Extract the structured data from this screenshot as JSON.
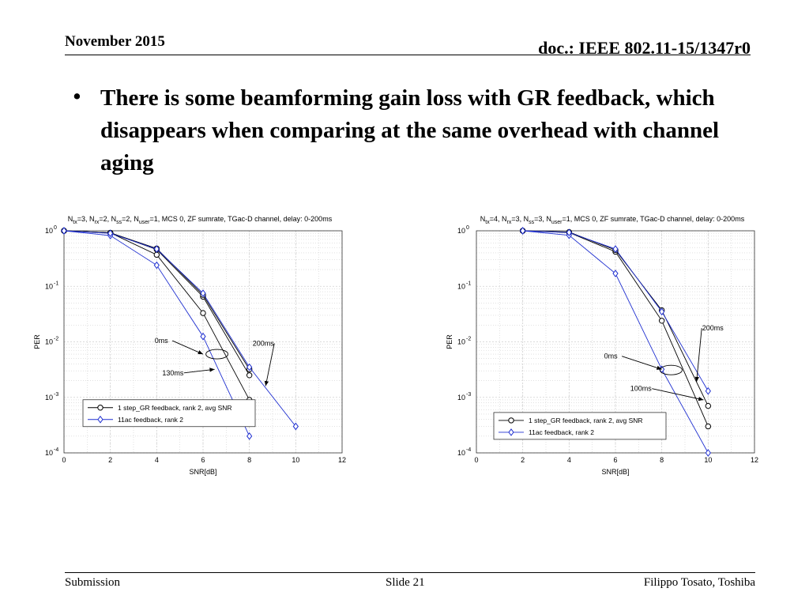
{
  "slide": {
    "date": "November 2015",
    "doc": "doc.: IEEE 802.11-15/1347r0",
    "bullet": "There is some beamforming gain loss with GR feedback, which disappears when comparing at the same overhead with channel aging",
    "footer_left": "Submission",
    "footer_mid": "Slide 21",
    "footer_right": "Filippo Tosato, Toshiba"
  },
  "colors": {
    "black_series": "#000000",
    "blue_series": "#1f2fd0",
    "grid": "#d0d0d0"
  },
  "chart_data": [
    {
      "type": "line",
      "title": "N_tx=3, N_rx=2, N_ss=2, N_user=1, MCS 0, ZF sumrate, TGac-D channel, delay: 0-200ms",
      "title_parts": [
        {
          "t": "N",
          "sub": false
        },
        {
          "t": "tx",
          "sub": true
        },
        {
          "t": "=3, N",
          "sub": false
        },
        {
          "t": "rx",
          "sub": true
        },
        {
          "t": "=2, N",
          "sub": false
        },
        {
          "t": "ss",
          "sub": true
        },
        {
          "t": "=2, N",
          "sub": false
        },
        {
          "t": "user",
          "sub": true
        },
        {
          "t": "=1, MCS 0, ZF sumrate, TGac-D channel, delay: 0-200ms",
          "sub": false
        }
      ],
      "xlabel": "SNR[dB]",
      "ylabel": "PER",
      "xlim": [
        0,
        12
      ],
      "ylim": [
        0.0001,
        1
      ],
      "yscale": "log",
      "xticks": [
        "0",
        "2",
        "4",
        "6",
        "8",
        "10",
        "12"
      ],
      "yticks": [
        {
          "base": "10",
          "exp": "0"
        },
        {
          "base": "10",
          "exp": "-1"
        },
        {
          "base": "10",
          "exp": "-2"
        },
        {
          "base": "10",
          "exp": "-3"
        },
        {
          "base": "10",
          "exp": "-4"
        }
      ],
      "grid": true,
      "legend": [
        {
          "label": "1 step_GR feedback, rank 2, avg SNR",
          "marker": "circle",
          "color": "#000000"
        },
        {
          "label": "11ac feedback, rank 2",
          "marker": "diamond",
          "color": "#1f2fd0"
        }
      ],
      "series": [
        {
          "legend": 0,
          "marker": "circle",
          "color": "#000000",
          "x": [
            0,
            2,
            4,
            6,
            8
          ],
          "y": [
            1,
            0.92,
            0.37,
            0.033,
            0.0009
          ]
        },
        {
          "legend": 0,
          "marker": "circle",
          "color": "#000000",
          "x": [
            0,
            2,
            4,
            6,
            8
          ],
          "y": [
            1,
            0.92,
            0.46,
            0.065,
            0.0025
          ]
        },
        {
          "legend": 0,
          "marker": "circle",
          "color": "#000000",
          "x": [
            0,
            2,
            4,
            6,
            8
          ],
          "y": [
            1,
            0.92,
            0.48,
            0.07,
            0.0032
          ]
        },
        {
          "legend": 1,
          "marker": "diamond",
          "color": "#1f2fd0",
          "x": [
            0,
            2,
            4,
            6,
            8
          ],
          "y": [
            1,
            0.82,
            0.24,
            0.0125,
            0.0002
          ]
        },
        {
          "legend": 1,
          "marker": "diamond",
          "color": "#1f2fd0",
          "x": [
            0,
            2,
            4,
            6,
            8,
            10
          ],
          "y": [
            1,
            0.9,
            0.47,
            0.075,
            0.0035,
            0.0003
          ]
        }
      ],
      "annotations": [
        {
          "text": "0ms",
          "x": 4.2,
          "y": 0.0095,
          "arrow": [
            6.0,
            0.006
          ]
        },
        {
          "text": "200ms",
          "x": 8.6,
          "y": 0.0085,
          "arrow": [
            8.7,
            0.0016
          ]
        },
        {
          "text": "130ms",
          "x": 4.7,
          "y": 0.0025,
          "arrow": [
            6.5,
            0.0032
          ]
        }
      ],
      "ellipse": {
        "x": 6.6,
        "y": 0.006
      }
    },
    {
      "type": "line",
      "title": "N_tx=4, N_rx=3, N_ss=3, N_user=1, MCS 0, ZF sumrate, TGac-D channel, delay: 0-200ms",
      "title_parts": [
        {
          "t": "N",
          "sub": false
        },
        {
          "t": "tx",
          "sub": true
        },
        {
          "t": "=4, N",
          "sub": false
        },
        {
          "t": "rx",
          "sub": true
        },
        {
          "t": "=3, N",
          "sub": false
        },
        {
          "t": "ss",
          "sub": true
        },
        {
          "t": "=3, N",
          "sub": false
        },
        {
          "t": "user",
          "sub": true
        },
        {
          "t": "=1, MCS 0, ZF sumrate, TGac-D channel, delay: 0-200ms",
          "sub": false
        }
      ],
      "xlabel": "SNR[dB]",
      "ylabel": "PER",
      "xlim": [
        0,
        12
      ],
      "ylim": [
        0.0001,
        1
      ],
      "yscale": "log",
      "xticks": [
        "0",
        "2",
        "4",
        "6",
        "8",
        "10",
        "12"
      ],
      "yticks": [
        {
          "base": "10",
          "exp": "0"
        },
        {
          "base": "10",
          "exp": "-1"
        },
        {
          "base": "10",
          "exp": "-2"
        },
        {
          "base": "10",
          "exp": "-3"
        },
        {
          "base": "10",
          "exp": "-4"
        }
      ],
      "grid": true,
      "legend": [
        {
          "label": "1 step_GR feedback, rank 2, avg SNR",
          "marker": "circle",
          "color": "#000000"
        },
        {
          "label": "11ac feedback, rank 2",
          "marker": "diamond",
          "color": "#1f2fd0"
        }
      ],
      "series": [
        {
          "legend": 0,
          "marker": "circle",
          "color": "#000000",
          "x": [
            2,
            4,
            6,
            8,
            10
          ],
          "y": [
            1,
            0.93,
            0.42,
            0.024,
            0.0003
          ]
        },
        {
          "legend": 0,
          "marker": "circle",
          "color": "#000000",
          "x": [
            2,
            4,
            6,
            8,
            10
          ],
          "y": [
            1,
            0.95,
            0.45,
            0.037,
            0.0007
          ]
        },
        {
          "legend": 1,
          "marker": "diamond",
          "color": "#1f2fd0",
          "x": [
            2,
            4,
            6,
            8,
            10
          ],
          "y": [
            1,
            0.83,
            0.17,
            0.0032,
            0.0001
          ]
        },
        {
          "legend": 1,
          "marker": "diamond",
          "color": "#1f2fd0",
          "x": [
            2,
            4,
            6,
            8,
            10
          ],
          "y": [
            1,
            0.93,
            0.47,
            0.035,
            0.0013
          ]
        }
      ],
      "annotations": [
        {
          "text": "200ms",
          "x": 10.2,
          "y": 0.016,
          "arrow": [
            9.5,
            0.0019
          ]
        },
        {
          "text": "0ms",
          "x": 5.8,
          "y": 0.005,
          "arrow": [
            8.0,
            0.0032
          ]
        },
        {
          "text": "100ms",
          "x": 7.1,
          "y": 0.0013,
          "arrow": [
            9.8,
            0.0009
          ]
        }
      ],
      "ellipse": {
        "x": 8.4,
        "y": 0.0031
      }
    }
  ]
}
